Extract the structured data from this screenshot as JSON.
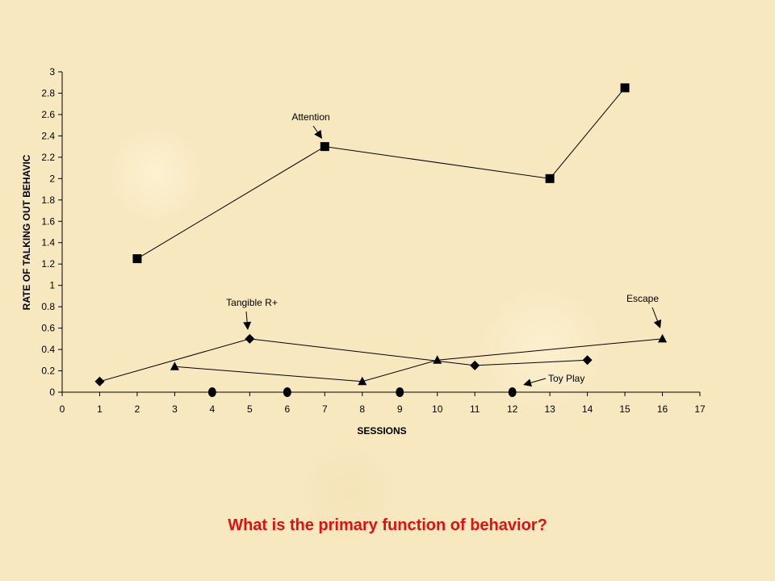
{
  "chart_data": {
    "type": "line",
    "xlabel": "SESSIONS",
    "ylabel": "RATE OF TALKING OUT BEHAVIC",
    "xlim": [
      0,
      17
    ],
    "ylim": [
      0,
      3
    ],
    "xticks": [
      "0",
      "1",
      "2",
      "3",
      "4",
      "5",
      "6",
      "7",
      "8",
      "9",
      "10",
      "11",
      "12",
      "13",
      "14",
      "15",
      "16",
      "17"
    ],
    "yticks": [
      "0",
      "0.2",
      "0.4",
      "0.6",
      "0.8",
      "1",
      "1.2",
      "1.4",
      "1.6",
      "1.8",
      "2",
      "2.2",
      "2.4",
      "2.6",
      "2.8",
      "3"
    ],
    "grid": false,
    "series": [
      {
        "name": "Attention",
        "marker": "square",
        "points": [
          [
            2,
            1.25
          ],
          [
            7,
            2.3
          ],
          [
            13,
            2.0
          ],
          [
            15,
            2.85
          ]
        ]
      },
      {
        "name": "Tangible R+",
        "marker": "diamond",
        "points": [
          [
            1,
            0.1
          ],
          [
            5,
            0.5
          ],
          [
            11,
            0.25
          ],
          [
            14,
            0.3
          ]
        ]
      },
      {
        "name": "Escape",
        "marker": "triangle",
        "points": [
          [
            3,
            0.24
          ],
          [
            8,
            0.1
          ],
          [
            10,
            0.3
          ],
          [
            16,
            0.5
          ]
        ]
      },
      {
        "name": "Toy Play",
        "marker": "circle",
        "points": [
          [
            4,
            0
          ],
          [
            6,
            0
          ],
          [
            9,
            0
          ],
          [
            12,
            0
          ]
        ]
      }
    ]
  },
  "question": "What is the primary function of behavior?",
  "colors": {
    "question": "#e01010",
    "ink": "#000000"
  }
}
